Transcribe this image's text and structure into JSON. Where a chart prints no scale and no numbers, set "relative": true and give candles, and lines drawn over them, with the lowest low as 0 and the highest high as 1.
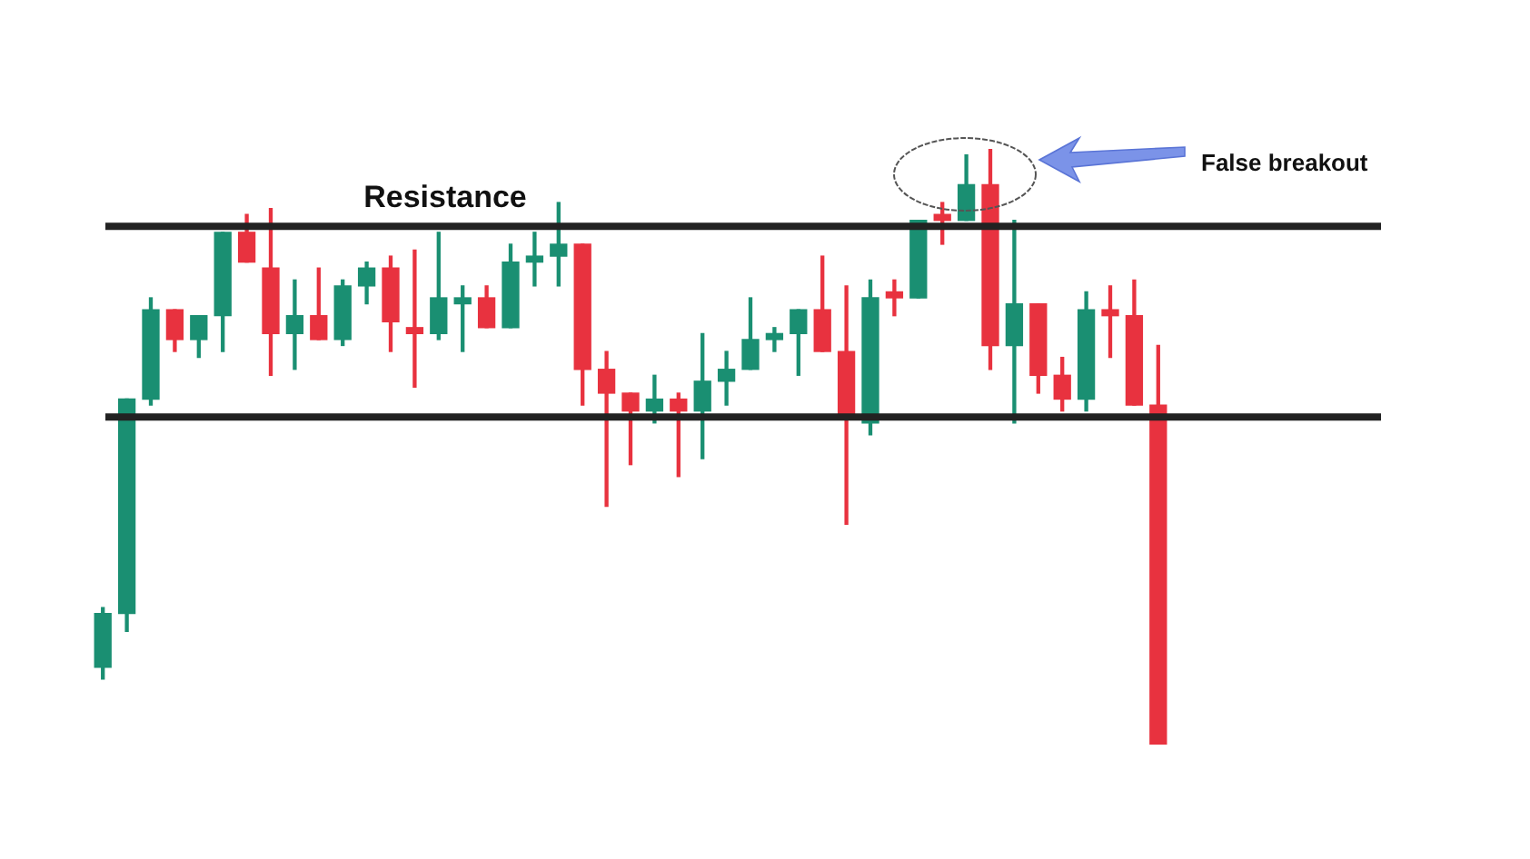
{
  "chart_data": {
    "type": "candlestick",
    "relative": true,
    "categories": [
      null,
      null,
      null,
      null,
      null,
      null,
      null,
      null,
      null,
      null,
      null,
      null,
      null,
      null,
      null,
      null,
      null,
      null,
      null,
      null,
      null,
      null,
      null,
      null,
      null,
      null,
      null,
      null,
      null,
      null,
      null,
      null,
      null,
      null,
      null,
      null,
      null,
      null,
      null,
      null,
      null,
      null,
      null,
      null,
      null
    ],
    "ohlc": [
      [
        0.13,
        0.23,
        0.11,
        0.22
      ],
      [
        0.22,
        0.58,
        0.19,
        0.58
      ],
      [
        0.58,
        0.75,
        0.57,
        0.73
      ],
      [
        0.73,
        0.73,
        0.66,
        0.68
      ],
      [
        0.68,
        0.72,
        0.65,
        0.72
      ],
      [
        0.72,
        0.86,
        0.66,
        0.86
      ],
      [
        0.86,
        0.89,
        0.81,
        0.81
      ],
      [
        0.8,
        0.9,
        0.62,
        0.69
      ],
      [
        0.69,
        0.78,
        0.63,
        0.72
      ],
      [
        0.72,
        0.8,
        0.68,
        0.68
      ],
      [
        0.68,
        0.78,
        0.67,
        0.77
      ],
      [
        0.77,
        0.81,
        0.74,
        0.8
      ],
      [
        0.8,
        0.82,
        0.66,
        0.71
      ],
      [
        0.7,
        0.83,
        0.6,
        0.69
      ],
      [
        0.69,
        0.86,
        0.68,
        0.75
      ],
      [
        0.74,
        0.77,
        0.66,
        0.75
      ],
      [
        0.75,
        0.77,
        0.7,
        0.7
      ],
      [
        0.7,
        0.84,
        0.7,
        0.81
      ],
      [
        0.81,
        0.86,
        0.77,
        0.82
      ],
      [
        0.82,
        0.91,
        0.77,
        0.84
      ],
      [
        0.84,
        0.84,
        0.57,
        0.63
      ],
      [
        0.63,
        0.66,
        0.4,
        0.59
      ],
      [
        0.59,
        0.59,
        0.47,
        0.56
      ],
      [
        0.56,
        0.62,
        0.54,
        0.58
      ],
      [
        0.58,
        0.59,
        0.45,
        0.56
      ],
      [
        0.56,
        0.69,
        0.48,
        0.61
      ],
      [
        0.61,
        0.66,
        0.57,
        0.63
      ],
      [
        0.63,
        0.75,
        0.63,
        0.68
      ],
      [
        0.68,
        0.7,
        0.66,
        0.69
      ],
      [
        0.69,
        0.73,
        0.62,
        0.73
      ],
      [
        0.73,
        0.82,
        0.66,
        0.66
      ],
      [
        0.66,
        0.77,
        0.37,
        0.55
      ],
      [
        0.54,
        0.78,
        0.52,
        0.75
      ],
      [
        0.76,
        0.78,
        0.72,
        0.75
      ],
      [
        0.75,
        0.88,
        0.75,
        0.88
      ],
      [
        0.89,
        0.91,
        0.84,
        0.88
      ],
      [
        0.88,
        0.99,
        0.88,
        0.94
      ],
      [
        0.94,
        1,
        0.63,
        0.67
      ],
      [
        0.67,
        0.88,
        0.54,
        0.74
      ],
      [
        0.74,
        0.74,
        0.59,
        0.62
      ],
      [
        0.62,
        0.65,
        0.56,
        0.58
      ],
      [
        0.58,
        0.76,
        0.56,
        0.73
      ],
      [
        0.73,
        0.77,
        0.65,
        0.72
      ],
      [
        0.72,
        0.78,
        0.57,
        0.57
      ],
      [
        0.57,
        0.67,
        0,
        0
      ]
    ],
    "colors": [
      "#1a8f72",
      "#1a8f72",
      "#1a8f72",
      "#e8323f",
      "#1a8f72",
      "#1a8f72",
      "#e8323f",
      "#e8323f",
      "#1a8f72",
      "#e8323f",
      "#1a8f72",
      "#1a8f72",
      "#e8323f",
      "#e8323f",
      "#1a8f72",
      "#1a8f72",
      "#e8323f",
      "#1a8f72",
      "#1a8f72",
      "#1a8f72",
      "#e8323f",
      "#e8323f",
      "#e8323f",
      "#1a8f72",
      "#e8323f",
      "#1a8f72",
      "#1a8f72",
      "#1a8f72",
      "#1a8f72",
      "#1a8f72",
      "#e8323f",
      "#e8323f",
      "#1a8f72",
      "#e8323f",
      "#1a8f72",
      "#e8323f",
      "#1a8f72",
      "#e8323f",
      "#1a8f72",
      "#e8323f",
      "#e8323f",
      "#1a8f72",
      "#e8323f",
      "#e8323f",
      "#e8323f"
    ],
    "ref_lines": [
      {
        "axis": "y",
        "value": 0.87,
        "label": "Resistance",
        "color": "#222222"
      },
      {
        "axis": "y",
        "value": 0.55,
        "color": "#222222"
      }
    ],
    "annotations": [
      "False breakout"
    ]
  }
}
